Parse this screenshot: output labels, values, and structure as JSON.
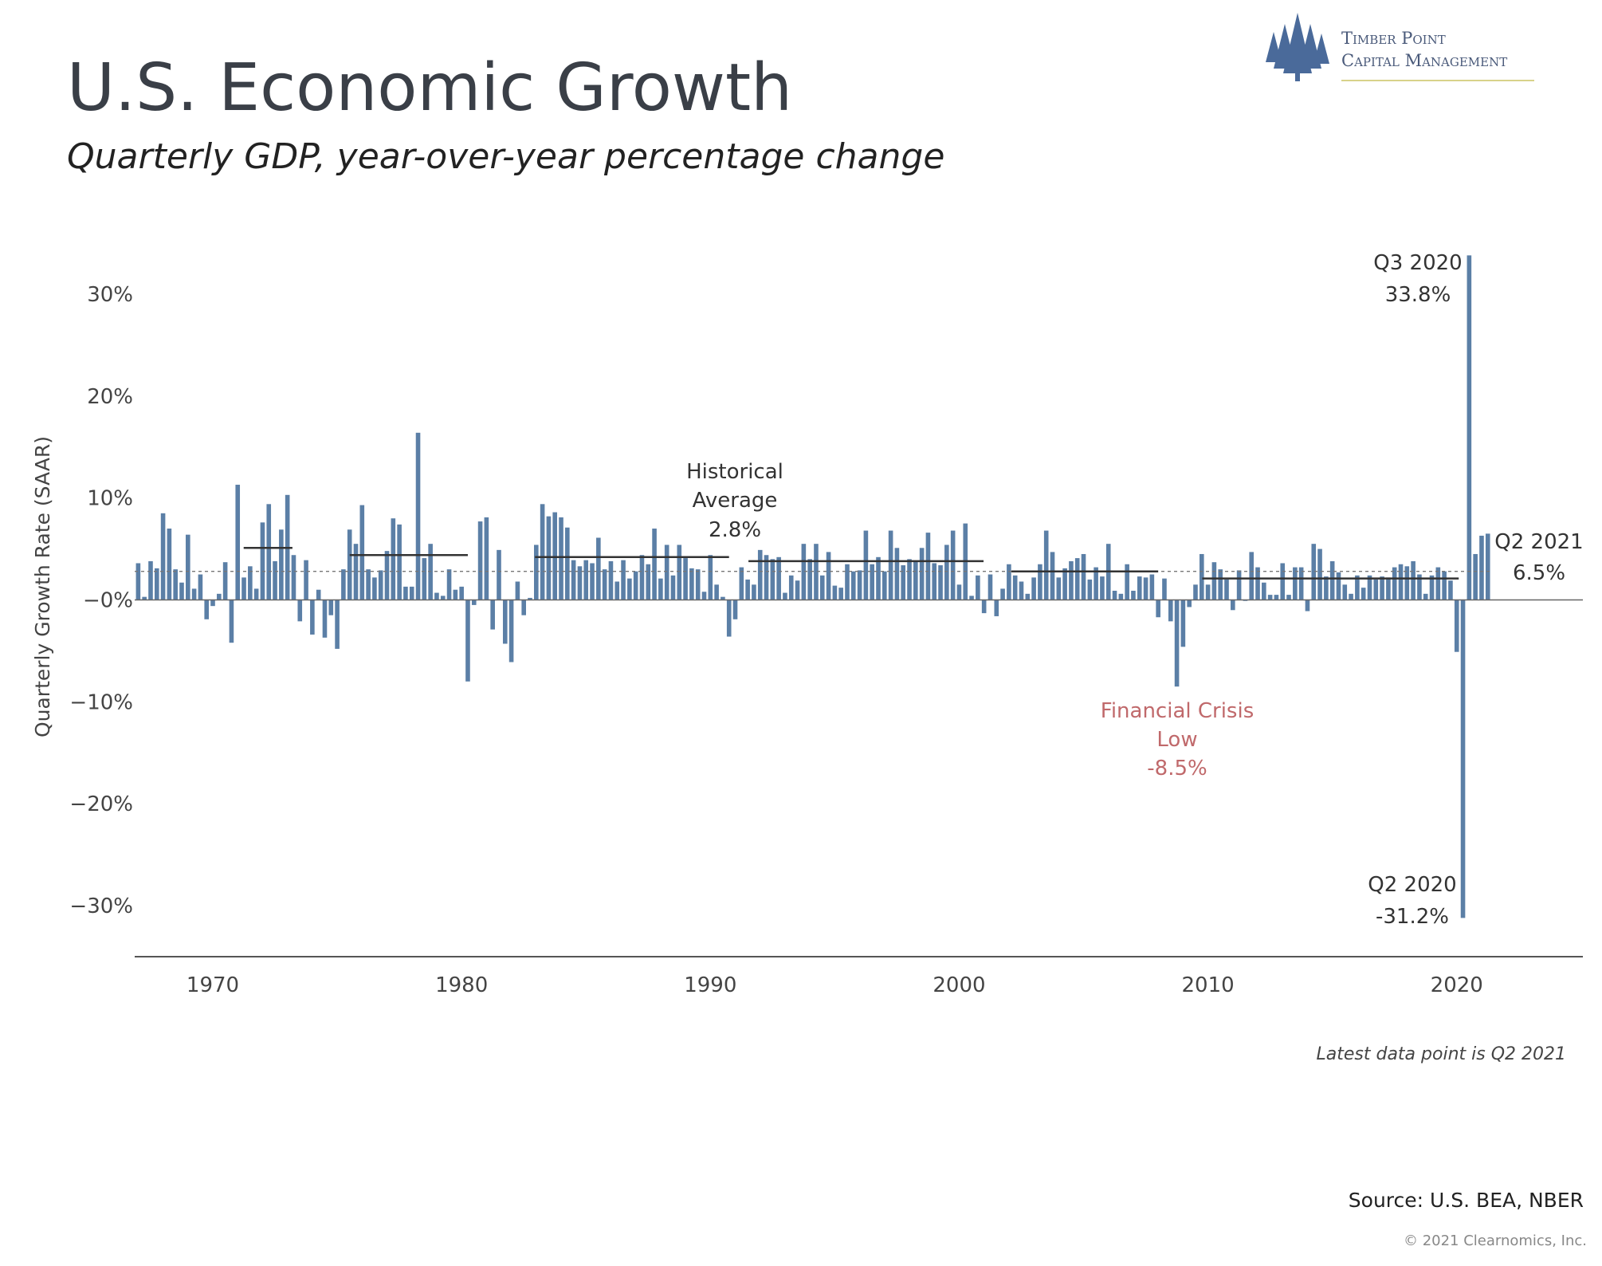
{
  "chart_data": {
    "type": "bar",
    "title": "U.S. Economic Growth",
    "subtitle": "Quarterly GDP, year-over-year percentage change",
    "y_label": "Quarterly Growth Rate (SAAR)",
    "logo": {
      "lines": [
        "Timber Point",
        "Capital Management"
      ]
    },
    "note": "Latest data point is Q2 2021",
    "source": "Source: U.S. BEA, NBER",
    "copyright": "© 2021 Clearnomics, Inc.",
    "color": "#5b7fa6",
    "xlim": [
      1966.86,
      2025.07
    ],
    "xticks": [
      1970,
      1980,
      1990,
      2000,
      2010,
      2020
    ],
    "ylim": [
      -35,
      35
    ],
    "yticks": [
      {
        "value": 30,
        "label": "30%"
      },
      {
        "value": 20,
        "label": "20%"
      },
      {
        "value": 10,
        "label": "10%"
      },
      {
        "value": 0,
        "label": "−0%"
      },
      {
        "value": -10,
        "label": "−10%"
      },
      {
        "value": -20,
        "label": "−20%"
      },
      {
        "value": -30,
        "label": "−30%"
      }
    ],
    "historical_average": 2.8,
    "period_averages": [
      {
        "x": [
          1971.24,
          1973.2
        ],
        "value": 5.1
      },
      {
        "x": [
          1975.5,
          1980.25
        ],
        "value": 4.4
      },
      {
        "x": [
          1982.95,
          1990.75
        ],
        "value": 4.2
      },
      {
        "x": [
          1991.53,
          2000.98
        ],
        "value": 3.8
      },
      {
        "x": [
          2002.1,
          2008.0
        ],
        "value": 2.8
      },
      {
        "x": [
          2009.77,
          2020.08
        ],
        "value": 2.1
      }
    ],
    "annotations": [
      {
        "lines": [
          "Historical",
          "Average",
          "2.8%"
        ]
      },
      {
        "lines": [
          "Financial Crisis",
          "Low",
          "-8.5%"
        ]
      },
      {
        "lines": [
          "Q3 2020",
          "33.8%"
        ]
      },
      {
        "lines": [
          "Q2 2020",
          "-31.2%"
        ]
      },
      {
        "lines": [
          "Q2 2021",
          "6.5%"
        ]
      }
    ],
    "x": [
      1967,
      1967.25,
      1967.5,
      1967.75,
      1968,
      1968.25,
      1968.5,
      1968.75,
      1969,
      1969.25,
      1969.5,
      1969.75,
      1970,
      1970.25,
      1970.5,
      1970.75,
      1971,
      1971.25,
      1971.5,
      1971.75,
      1972,
      1972.25,
      1972.5,
      1972.75,
      1973,
      1973.25,
      1973.5,
      1973.75,
      1974,
      1974.25,
      1974.5,
      1974.75,
      1975,
      1975.25,
      1975.5,
      1975.75,
      1976,
      1976.25,
      1976.5,
      1976.75,
      1977,
      1977.25,
      1977.5,
      1977.75,
      1978,
      1978.25,
      1978.5,
      1978.75,
      1979,
      1979.25,
      1979.5,
      1979.75,
      1980,
      1980.25,
      1980.5,
      1980.75,
      1981,
      1981.25,
      1981.5,
      1981.75,
      1982,
      1982.25,
      1982.5,
      1982.75,
      1983,
      1983.25,
      1983.5,
      1983.75,
      1984,
      1984.25,
      1984.5,
      1984.75,
      1985,
      1985.25,
      1985.5,
      1985.75,
      1986,
      1986.25,
      1986.5,
      1986.75,
      1987,
      1987.25,
      1987.5,
      1987.75,
      1988,
      1988.25,
      1988.5,
      1988.75,
      1989,
      1989.25,
      1989.5,
      1989.75,
      1990,
      1990.25,
      1990.5,
      1990.75,
      1991,
      1991.25,
      1991.5,
      1991.75,
      1992,
      1992.25,
      1992.5,
      1992.75,
      1993,
      1993.25,
      1993.5,
      1993.75,
      1994,
      1994.25,
      1994.5,
      1994.75,
      1995,
      1995.25,
      1995.5,
      1995.75,
      1996,
      1996.25,
      1996.5,
      1996.75,
      1997,
      1997.25,
      1997.5,
      1997.75,
      1998,
      1998.25,
      1998.5,
      1998.75,
      1999,
      1999.25,
      1999.5,
      1999.75,
      2000,
      2000.25,
      2000.5,
      2000.75,
      2001,
      2001.25,
      2001.5,
      2001.75,
      2002,
      2002.25,
      2002.5,
      2002.75,
      2003,
      2003.25,
      2003.5,
      2003.75,
      2004,
      2004.25,
      2004.5,
      2004.75,
      2005,
      2005.25,
      2005.5,
      2005.75,
      2006,
      2006.25,
      2006.5,
      2006.75,
      2007,
      2007.25,
      2007.5,
      2007.75,
      2008,
      2008.25,
      2008.5,
      2008.75,
      2009,
      2009.25,
      2009.5,
      2009.75,
      2010,
      2010.25,
      2010.5,
      2010.75,
      2011,
      2011.25,
      2011.5,
      2011.75,
      2012,
      2012.25,
      2012.5,
      2012.75,
      2013,
      2013.25,
      2013.5,
      2013.75,
      2014,
      2014.25,
      2014.5,
      2014.75,
      2015,
      2015.25,
      2015.5,
      2015.75,
      2016,
      2016.25,
      2016.5,
      2016.75,
      2017,
      2017.25,
      2017.5,
      2017.75,
      2018,
      2018.25,
      2018.5,
      2018.75,
      2019,
      2019.25,
      2019.5,
      2019.75,
      2020,
      2020.25,
      2020.5,
      2020.75,
      2021,
      2021.25
    ],
    "values": [
      3.6,
      0.3,
      3.8,
      3.1,
      8.5,
      7.0,
      3.0,
      1.7,
      6.4,
      1.1,
      2.5,
      -1.9,
      -0.6,
      0.6,
      3.7,
      -4.2,
      11.3,
      2.2,
      3.3,
      1.1,
      7.6,
      9.4,
      3.8,
      6.9,
      10.3,
      4.4,
      -2.1,
      3.9,
      -3.4,
      1.0,
      -3.7,
      -1.5,
      -4.8,
      3.0,
      6.9,
      5.5,
      9.3,
      3.0,
      2.2,
      2.9,
      4.8,
      8.0,
      7.4,
      1.3,
      1.3,
      16.4,
      4.1,
      5.5,
      0.7,
      0.4,
      3.0,
      1.0,
      1.3,
      -8.0,
      -0.5,
      7.7,
      8.1,
      -2.9,
      4.9,
      -4.3,
      -6.1,
      1.8,
      -1.5,
      0.2,
      5.4,
      9.4,
      8.2,
      8.6,
      8.1,
      7.1,
      3.9,
      3.3,
      3.9,
      3.6,
      6.1,
      3.0,
      3.8,
      1.8,
      3.9,
      2.1,
      2.8,
      4.4,
      3.5,
      7.0,
      2.1,
      5.4,
      2.4,
      5.4,
      4.1,
      3.1,
      3.0,
      0.8,
      4.4,
      1.5,
      0.3,
      -3.6,
      -1.9,
      3.2,
      2.0,
      1.5,
      4.9,
      4.4,
      4.0,
      4.2,
      0.7,
      2.4,
      1.9,
      5.5,
      4.0,
      5.5,
      2.4,
      4.7,
      1.4,
      1.2,
      3.5,
      2.8,
      2.9,
      6.8,
      3.5,
      4.2,
      2.8,
      6.8,
      5.1,
      3.4,
      4.0,
      3.8,
      5.1,
      6.6,
      3.6,
      3.4,
      5.4,
      6.8,
      1.5,
      7.5,
      0.4,
      2.4,
      -1.3,
      2.5,
      -1.6,
      1.1,
      3.5,
      2.4,
      1.8,
      0.6,
      2.2,
      3.5,
      6.8,
      4.7,
      2.2,
      3.1,
      3.8,
      4.1,
      4.5,
      2.0,
      3.2,
      2.3,
      5.5,
      0.9,
      0.6,
      3.5,
      0.9,
      2.3,
      2.2,
      2.5,
      -1.7,
      2.1,
      -2.1,
      -8.5,
      -4.6,
      -0.7,
      1.5,
      4.5,
      1.5,
      3.7,
      3.0,
      2.0,
      -1.0,
      2.9,
      -0.1,
      4.7,
      3.2,
      1.7,
      0.5,
      0.5,
      3.6,
      0.5,
      3.2,
      3.2,
      -1.1,
      5.5,
      5.0,
      2.3,
      3.8,
      2.7,
      1.5,
      0.6,
      2.4,
      1.2,
      2.4,
      2.0,
      2.3,
      2.2,
      3.2,
      3.5,
      3.3,
      3.8,
      2.5,
      0.6,
      2.4,
      3.2,
      2.8,
      1.9,
      -5.1,
      -31.2,
      33.8,
      4.5,
      6.3,
      6.5
    ]
  }
}
